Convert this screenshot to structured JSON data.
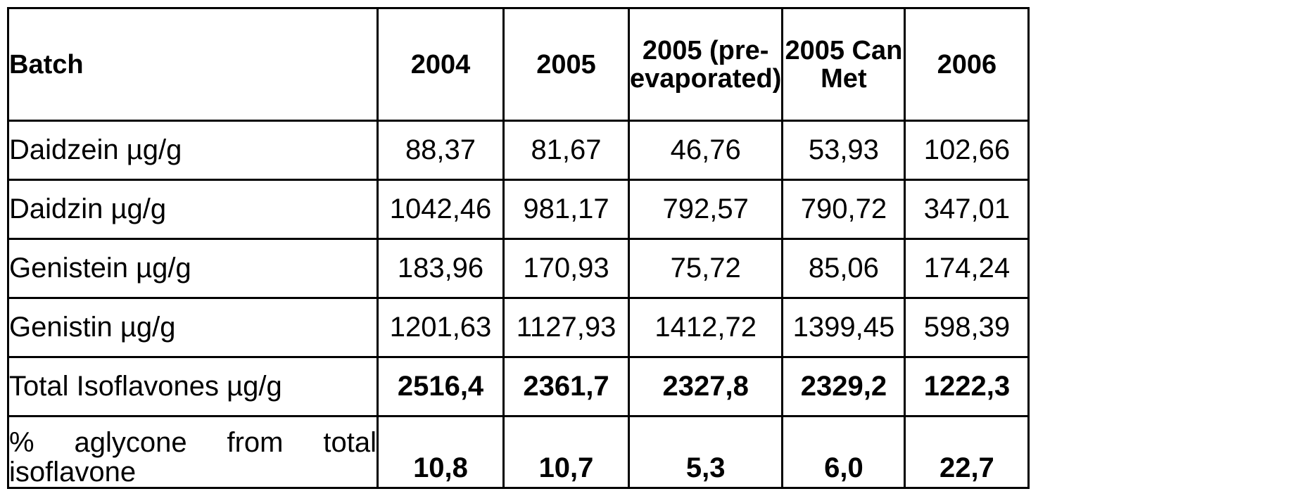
{
  "table": {
    "header": [
      "Batch",
      "2004",
      "2005",
      "2005 (pre-evaporated)",
      "2005 Can Met",
      "2006"
    ],
    "rows": [
      {
        "label": "Daidzein µg/g",
        "values": [
          "88,37",
          "81,67",
          "46,76",
          "53,93",
          "102,66"
        ]
      },
      {
        "label": "Daidzin µg/g",
        "values": [
          "1042,46",
          "981,17",
          "792,57",
          "790,72",
          "347,01"
        ]
      },
      {
        "label": "Genistein µg/g",
        "values": [
          "183,96",
          "170,93",
          "75,72",
          "85,06",
          "174,24"
        ]
      },
      {
        "label": "Genistin µg/g",
        "values": [
          "1201,63",
          "1127,93",
          "1412,72",
          "1399,45",
          "598,39"
        ]
      },
      {
        "label": "Total Isoflavones µg/g",
        "values": [
          "2516,4",
          "2361,7",
          "2327,8",
          "2329,2",
          "1222,3"
        ]
      },
      {
        "label": "% aglycone from total isoflavone",
        "values": [
          "10,8",
          "10,7",
          "5,3",
          "6,0",
          "22,7"
        ]
      }
    ]
  }
}
